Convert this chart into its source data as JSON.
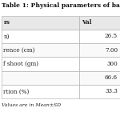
{
  "title": "Table 1: Physical parameters of bamboo s",
  "col_headers": [
    "Parameters",
    "Val"
  ],
  "rows": [
    [
      "rs",
      "Val"
    ],
    [
      "n)",
      "26.5"
    ],
    [
      "rence (cm)",
      "7.00"
    ],
    [
      "f shoot (gm)",
      "300"
    ],
    [
      "",
      "66.6"
    ],
    [
      "rtion (%)",
      "33.3"
    ]
  ],
  "footer": "Values are in Mean±SD",
  "header_bg": "#e8e8e8",
  "row_bg": "#f9f9f9",
  "row_bg_alt": "#ffffff",
  "title_fontsize": 5.5,
  "body_fontsize": 5.2,
  "fig_bg": "#ffffff",
  "border_color": "#aaaaaa",
  "title_color": "#111111",
  "text_color": "#222222"
}
